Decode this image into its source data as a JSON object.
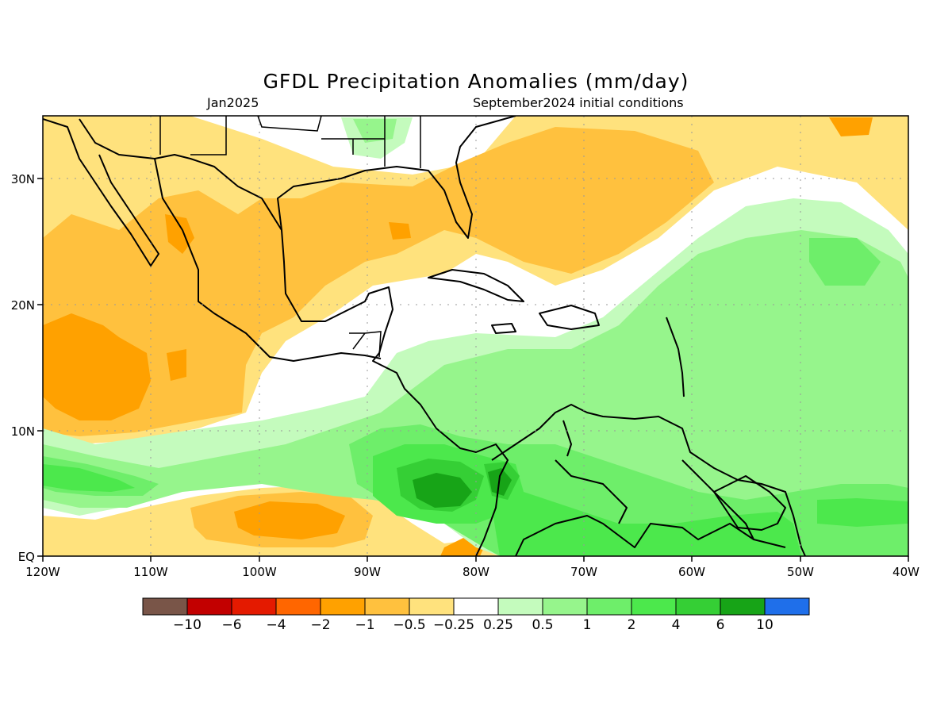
{
  "title": "GFDL Precipitation Anomalies (mm/day)",
  "subtitle_left": "Jan2025",
  "subtitle_right": "September2024 initial conditions",
  "lon_ticks": [
    "120W",
    "110W",
    "100W",
    "90W",
    "80W",
    "70W",
    "60W",
    "50W",
    "40W"
  ],
  "lat_ticks": [
    "EQ",
    "10N",
    "20N",
    "30N"
  ],
  "colorbar": {
    "colors": [
      "#795548",
      "#c20000",
      "#e41a00",
      "#ff6600",
      "#ffa100",
      "#ffc13e",
      "#ffe27d",
      "#ffffff",
      "#c4fbbd",
      "#96f58c",
      "#6eee6a",
      "#4ce84c",
      "#35cf35",
      "#17a417",
      "#1f6fea"
    ],
    "labels": [
      "−10",
      "−6",
      "−4",
      "−2",
      "−1",
      "−0.5",
      "−0.25",
      "0.25",
      "0.5",
      "1",
      "2",
      "4",
      "6",
      "10"
    ]
  }
}
